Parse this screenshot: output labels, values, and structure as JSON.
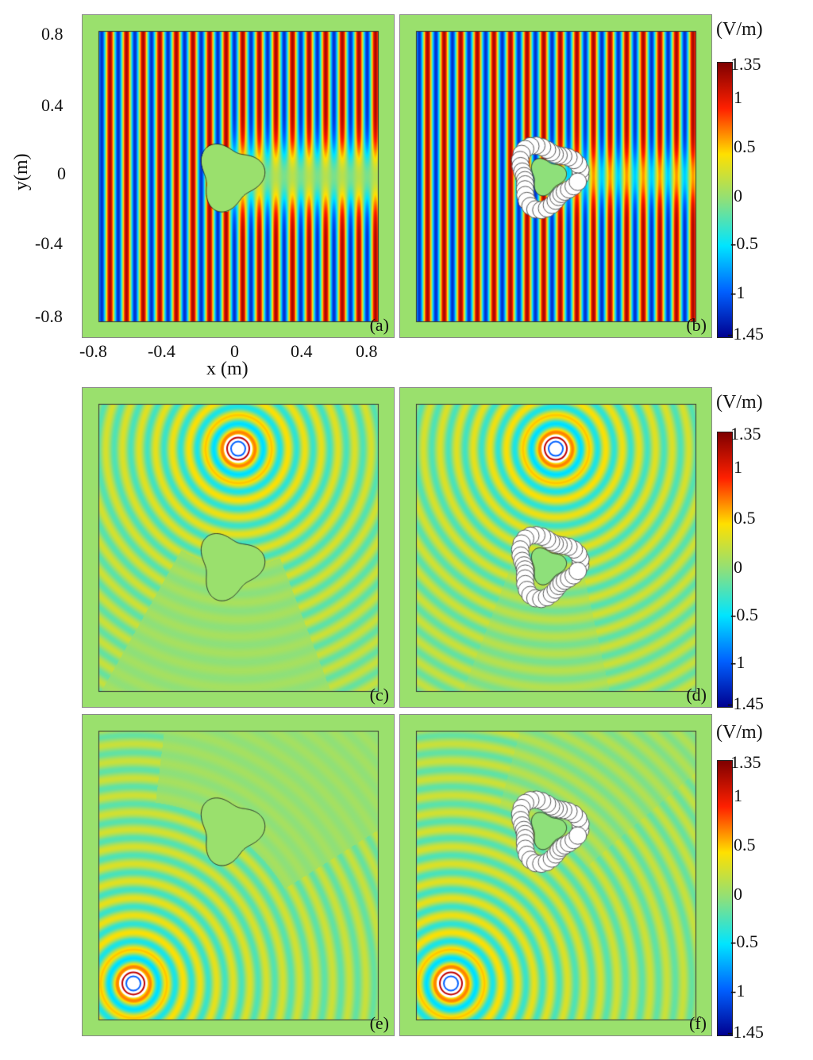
{
  "figure": {
    "panels": [
      {
        "id": "a",
        "label": "(a)",
        "source": "plane",
        "cloak": false
      },
      {
        "id": "b",
        "label": "(b)",
        "source": "plane",
        "cloak": true
      },
      {
        "id": "c",
        "label": "(c)",
        "source": "point-top",
        "cloak": false
      },
      {
        "id": "d",
        "label": "(d)",
        "source": "point-top",
        "cloak": true
      },
      {
        "id": "e",
        "label": "(e)",
        "source": "point-bottom-left",
        "cloak": false
      },
      {
        "id": "f",
        "label": "(f)",
        "source": "point-bottom-left",
        "cloak": true
      }
    ],
    "xaxis": {
      "label": "x (m)",
      "ticks": [
        "-0.8",
        "-0.4",
        "0",
        "0.4",
        "0.8"
      ]
    },
    "yaxis": {
      "label": "y(m)",
      "ticks": [
        "0.8",
        "0.4",
        "0",
        "-0.4",
        "-0.8"
      ]
    },
    "colorbar": {
      "unit": "(V/m)",
      "max_label": "1.35",
      "min_label": "-1.45",
      "ticks": [
        "1",
        "0.5",
        "0",
        "-0.5",
        "-1"
      ],
      "range": [
        -1.45,
        1.35
      ]
    }
  },
  "chart_data": {
    "type": "heatmap",
    "x_range": [
      -0.8,
      0.8
    ],
    "y_range": [
      -0.8,
      0.8
    ],
    "xlabel": "x (m)",
    "ylabel": "y(m)",
    "colorbar_range": [
      -1.45,
      1.35
    ],
    "colorbar_unit": "(V/m)",
    "colors": [
      "#00008f",
      "#0060ff",
      "#00e5ff",
      "#8ee07a",
      "#ffe000",
      "#ff2000",
      "#7f0000"
    ]
  }
}
